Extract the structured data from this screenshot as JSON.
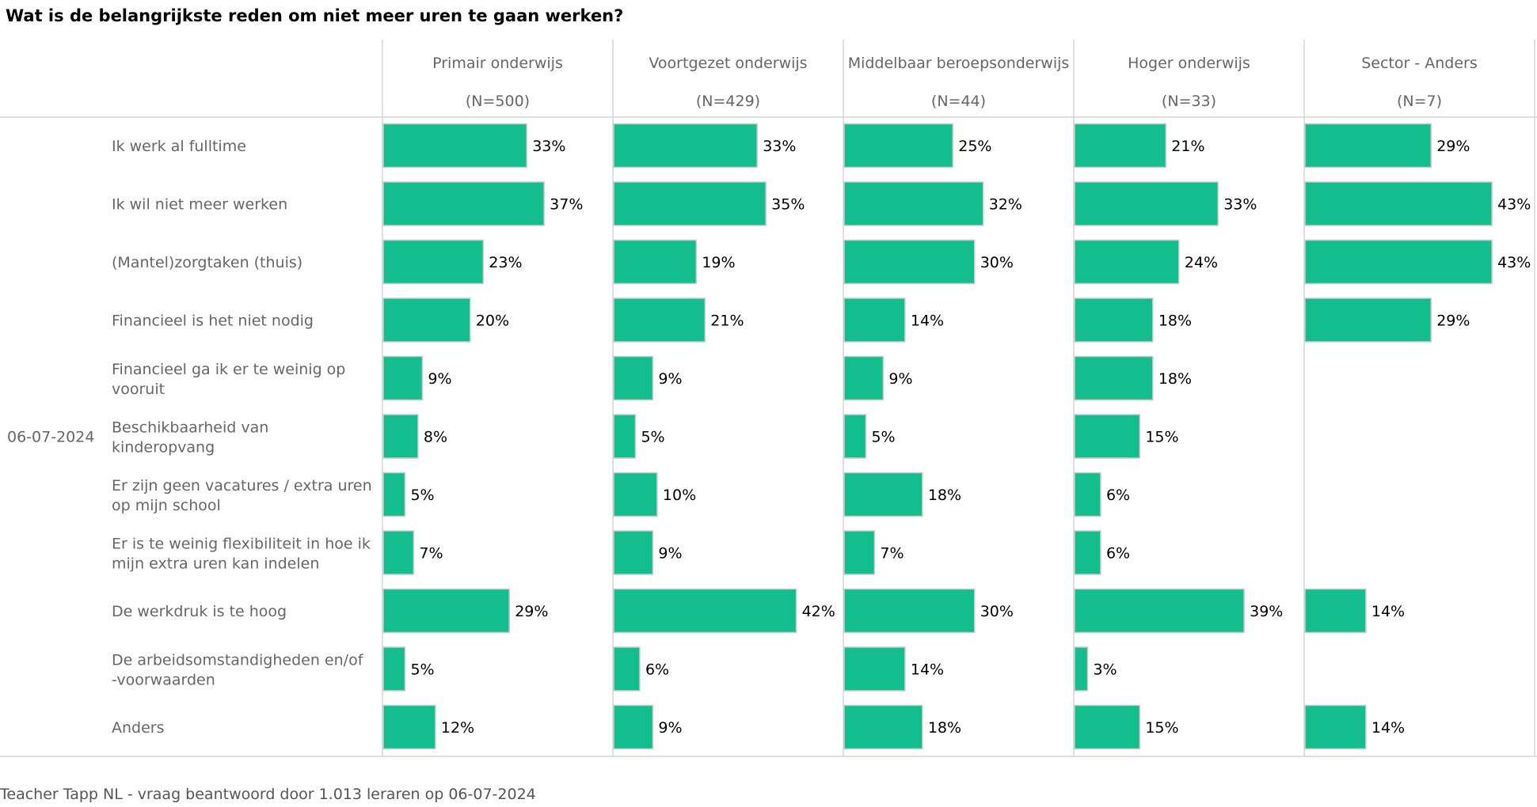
{
  "title": "Wat is de belangrijkste reden om niet meer uren te gaan werken?",
  "footer": "Teacher Tapp NL - vraag beantwoord door 1.013 leraren op 06-07-2024",
  "colors": {
    "bar": "#13bd8e",
    "bar_stroke": "#cccccc",
    "grid": "#cccccc",
    "text": "#666666"
  },
  "chart_data": {
    "type": "bar",
    "orientation": "horizontal",
    "date": "06-07-2024",
    "categories": [
      [
        "Ik werk al fulltime"
      ],
      [
        "Ik wil niet meer werken"
      ],
      [
        "(Mantel)zorgtaken (thuis)"
      ],
      [
        "Financieel is het niet nodig"
      ],
      [
        "Financieel ga ik er te weinig op",
        "vooruit"
      ],
      [
        "Beschikbaarheid van",
        "kinderopvang"
      ],
      [
        "Er zijn geen vacatures / extra uren",
        "op mijn school"
      ],
      [
        "Er is te weinig flexibiliteit in hoe ik",
        "mijn extra uren kan indelen"
      ],
      [
        "De werkdruk is te hoog"
      ],
      [
        "De arbeidsomstandigheden en/of",
        "-voorwaarden"
      ],
      [
        "Anders"
      ]
    ],
    "unit": "%",
    "series": [
      {
        "name": "Primair onderwijs",
        "n": "(N=500)",
        "values": [
          33,
          37,
          23,
          20,
          9,
          8,
          5,
          7,
          29,
          5,
          12
        ]
      },
      {
        "name": "Voortgezet onderwijs",
        "n": "(N=429)",
        "values": [
          33,
          35,
          19,
          21,
          9,
          5,
          10,
          9,
          42,
          6,
          9
        ]
      },
      {
        "name": "Middelbaar beroepsonderwijs",
        "n": "(N=44)",
        "values": [
          25,
          32,
          30,
          14,
          9,
          5,
          18,
          7,
          30,
          14,
          18
        ]
      },
      {
        "name": "Hoger onderwijs",
        "n": "(N=33)",
        "values": [
          21,
          33,
          24,
          18,
          18,
          15,
          6,
          6,
          39,
          3,
          15
        ]
      },
      {
        "name": "Sector - Anders",
        "n": "(N=7)",
        "values": [
          29,
          43,
          43,
          29,
          null,
          null,
          null,
          null,
          14,
          null,
          14
        ]
      }
    ],
    "xlim": [
      0,
      53
    ],
    "grid": false,
    "legend": "none"
  }
}
